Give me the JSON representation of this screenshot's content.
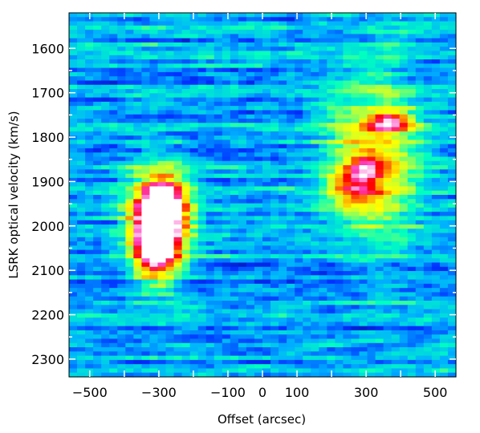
{
  "chart_data": {
    "type": "heatmap",
    "title": "",
    "xlabel": "Offset (arcsec)",
    "ylabel": "LSRK optical velocity  (km/s)",
    "xlim": [
      -560,
      560
    ],
    "ylim": [
      1520,
      2340
    ],
    "y_inverted": true,
    "x_ticks": [
      -500,
      -300,
      -100,
      0,
      100,
      300,
      500
    ],
    "x_tick_labels": [
      "−500",
      "−300",
      "−100",
      "0",
      "100",
      "300",
      "500"
    ],
    "y_ticks": [
      1600,
      1700,
      1800,
      1900,
      2000,
      2100,
      2200,
      2300
    ],
    "y_tick_labels": [
      "1600",
      "1700",
      "1800",
      "1900",
      "2000",
      "2100",
      "2200",
      "2300"
    ],
    "colormap": [
      "#000070",
      "#0030ff",
      "#00b0ff",
      "#00ffc0",
      "#b0ff40",
      "#ffff00",
      "#ff8000",
      "#ff0000",
      "#ff40c0",
      "#ffffff"
    ],
    "background_level": 0.22,
    "features": [
      {
        "x": -310,
        "y": 2030,
        "peak": 1.0,
        "sx": 35,
        "sy": 45
      },
      {
        "x": -290,
        "y": 1960,
        "peak": 0.8,
        "sx": 40,
        "sy": 40
      },
      {
        "x": -300,
        "y": 2000,
        "peak": 0.6,
        "sx": 60,
        "sy": 80
      },
      {
        "x": 370,
        "y": 1765,
        "peak": 0.5,
        "sx": 40,
        "sy": 15
      },
      {
        "x": 320,
        "y": 1850,
        "peak": 0.38,
        "sx": 90,
        "sy": 120
      },
      {
        "x": 270,
        "y": 1910,
        "peak": 0.35,
        "sx": 45,
        "sy": 25
      },
      {
        "x": 300,
        "y": 1870,
        "peak": 0.33,
        "sx": 35,
        "sy": 18
      }
    ]
  }
}
